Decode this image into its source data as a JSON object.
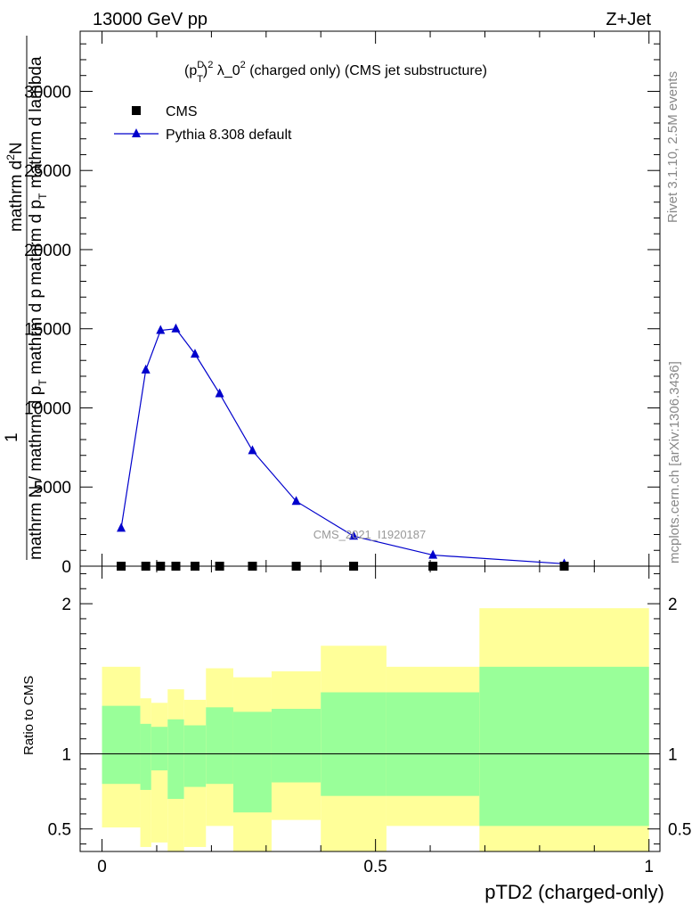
{
  "header": {
    "left": "13000 GeV pp",
    "right": "Z+Jet"
  },
  "side_labels": {
    "rivet": "Rivet 3.1.10,  2.5M events",
    "mcplots": "mcplots.cern.ch [arXiv:1306.3436]"
  },
  "watermark": "CMS_2021_I1920187",
  "chart_data": [
    {
      "type": "line",
      "title_parts": {
        "base": "(p",
        "sup": "D",
        "sub": "T",
        "rest": ")",
        "sup2": "2",
        "lambda": " λ_0",
        "sup3": "2",
        "tail": " (charged only) (CMS jet substructure)"
      },
      "ylabel_parts": {
        "numerator_top": "mathrm d",
        "numerator_sup": "2",
        "numerator_n": "N",
        "denominator": "mathrm d p",
        "denominator_sub": "T",
        "denominator_tail": " mathrm d lambda",
        "one": "1",
        "bottom": "mathrm N / mathrm d p",
        "bottom_sub": "T",
        "bottom_tail": " mathrm d p"
      },
      "xlim": [
        -0.04,
        1.02
      ],
      "ylim": [
        0,
        33800
      ],
      "y_ticks": [
        0,
        5000,
        10000,
        15000,
        20000,
        25000,
        30000
      ],
      "y_tick_labels": [
        "0",
        "5000",
        "10000",
        "15000",
        "20000",
        "25000",
        "30000"
      ],
      "legend_position": "top-left",
      "series": [
        {
          "name": "CMS",
          "marker": "square",
          "color": "#000000",
          "x": [
            0.035,
            0.08,
            0.107,
            0.135,
            0.17,
            0.215,
            0.275,
            0.355,
            0.46,
            0.605,
            0.845
          ],
          "values": [
            0,
            0,
            0,
            0,
            0,
            0,
            0,
            0,
            0,
            0,
            0
          ]
        },
        {
          "name": "Pythia 8.308 default",
          "marker": "triangle",
          "color": "#0000cc",
          "x": [
            0.035,
            0.08,
            0.107,
            0.135,
            0.17,
            0.215,
            0.275,
            0.355,
            0.46,
            0.605,
            0.845
          ],
          "values": [
            2400,
            12400,
            14900,
            15000,
            13400,
            10900,
            7300,
            4100,
            1900,
            700,
            150
          ]
        }
      ]
    },
    {
      "type": "area",
      "ylabel": "Ratio to CMS",
      "xlabel": "pTD2 (charged-only)",
      "xlim": [
        -0.04,
        1.02
      ],
      "ylim": [
        0.35,
        2.25
      ],
      "x_ticks": [
        0,
        0.5,
        1
      ],
      "x_tick_labels": [
        "0",
        "0.5",
        "1"
      ],
      "y_ticks": [
        0.5,
        1,
        2
      ],
      "y_tick_labels": [
        "0.5",
        "1",
        "2"
      ],
      "reference_line": 1,
      "bins": [
        {
          "lo": 0.0,
          "hi": 0.07,
          "inner": [
            0.8,
            1.32
          ],
          "outer": [
            0.51,
            1.58
          ]
        },
        {
          "lo": 0.07,
          "hi": 0.09,
          "inner": [
            0.76,
            1.2
          ],
          "outer": [
            0.38,
            1.37
          ]
        },
        {
          "lo": 0.09,
          "hi": 0.12,
          "inner": [
            0.89,
            1.18
          ],
          "outer": [
            0.41,
            1.34
          ]
        },
        {
          "lo": 0.12,
          "hi": 0.15,
          "inner": [
            0.7,
            1.23
          ],
          "outer": [
            0.33,
            1.43
          ]
        },
        {
          "lo": 0.15,
          "hi": 0.19,
          "inner": [
            0.78,
            1.19
          ],
          "outer": [
            0.38,
            1.36
          ]
        },
        {
          "lo": 0.19,
          "hi": 0.24,
          "inner": [
            0.8,
            1.31
          ],
          "outer": [
            0.52,
            1.57
          ]
        },
        {
          "lo": 0.24,
          "hi": 0.31,
          "inner": [
            0.61,
            1.28
          ],
          "outer": [
            0.34,
            1.51
          ]
        },
        {
          "lo": 0.31,
          "hi": 0.4,
          "inner": [
            0.81,
            1.3
          ],
          "outer": [
            0.56,
            1.55
          ]
        },
        {
          "lo": 0.4,
          "hi": 0.52,
          "inner": [
            0.72,
            1.41
          ],
          "outer": [
            0.3,
            1.72
          ]
        },
        {
          "lo": 0.52,
          "hi": 0.69,
          "inner": [
            0.72,
            1.41
          ],
          "outer": [
            0.52,
            1.58
          ]
        },
        {
          "lo": 0.69,
          "hi": 1.0,
          "inner": [
            0.52,
            1.58
          ],
          "outer": [
            0.3,
            1.97
          ]
        }
      ]
    }
  ]
}
